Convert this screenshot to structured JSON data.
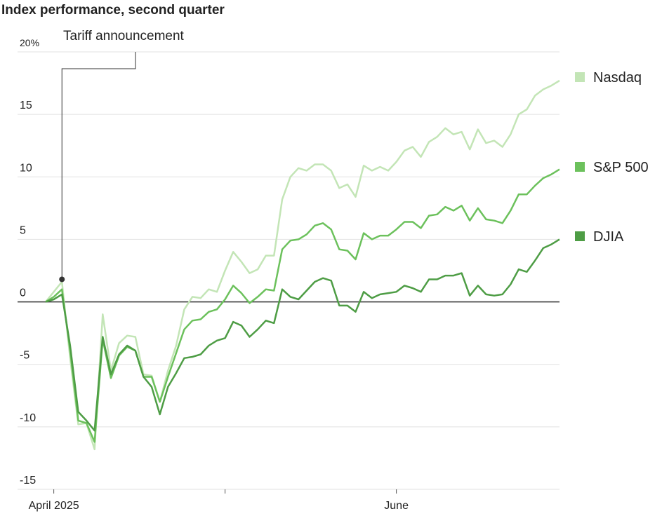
{
  "chart_data": {
    "type": "line",
    "title": "Index performance, second quarter",
    "x": [
      0,
      1,
      2,
      3,
      4,
      5,
      6,
      7,
      8,
      9,
      10,
      11,
      12,
      13,
      14,
      15,
      16,
      17,
      18,
      19,
      20,
      21,
      22,
      23,
      24,
      25,
      26,
      27,
      28,
      29,
      30,
      31,
      32,
      33,
      34,
      35,
      36,
      37,
      38,
      39,
      40,
      41,
      42,
      43,
      44,
      45,
      46,
      47,
      48,
      49,
      50,
      51,
      52,
      53,
      54,
      55,
      56,
      57,
      58,
      59,
      60,
      61,
      62,
      63
    ],
    "series": [
      {
        "name": "Nasdaq",
        "color": "#c3e5b6",
        "values": [
          0,
          0.8,
          1.6,
          -4.5,
          -9.8,
          -9.7,
          -11.8,
          -1.0,
          -5.5,
          -3.3,
          -2.7,
          -2.8,
          -5.8,
          -5.9,
          -8.0,
          -5.5,
          -3.5,
          -0.6,
          0.4,
          0.3,
          1.0,
          0.8,
          2.5,
          4.0,
          3.2,
          2.3,
          2.6,
          3.7,
          3.7,
          8.2,
          10.0,
          10.7,
          10.5,
          11.0,
          11.0,
          10.5,
          9.1,
          9.4,
          8.4,
          10.9,
          10.5,
          10.8,
          10.5,
          11.2,
          12.1,
          12.4,
          11.6,
          12.8,
          13.2,
          13.9,
          13.4,
          13.6,
          12.2,
          13.8,
          12.7,
          12.9,
          12.4,
          13.4,
          15.0,
          15.4,
          16.5,
          17.0,
          17.3,
          17.7
        ]
      },
      {
        "name": "S&P 500",
        "color": "#6cc15c",
        "values": [
          0,
          0.4,
          1.0,
          -3.9,
          -9.5,
          -9.7,
          -11.2,
          -3.0,
          -6.1,
          -4.3,
          -3.6,
          -3.9,
          -6.0,
          -6.0,
          -8.0,
          -6.0,
          -4.1,
          -2.2,
          -1.5,
          -1.4,
          -0.8,
          -0.6,
          0.2,
          1.3,
          0.7,
          -0.1,
          0.4,
          1.0,
          0.9,
          4.2,
          4.9,
          5.0,
          5.4,
          6.1,
          6.3,
          5.8,
          4.2,
          4.1,
          3.4,
          5.5,
          5.0,
          5.3,
          5.3,
          5.8,
          6.4,
          6.4,
          5.9,
          6.9,
          7.0,
          7.6,
          7.3,
          7.7,
          6.5,
          7.5,
          6.6,
          6.5,
          6.3,
          7.3,
          8.6,
          8.6,
          9.3,
          9.9,
          10.2,
          10.6
        ]
      },
      {
        "name": "DJIA",
        "color": "#4e9d45",
        "values": [
          0,
          0.2,
          0.6,
          -3.5,
          -8.8,
          -9.5,
          -10.3,
          -2.8,
          -5.8,
          -4.2,
          -3.5,
          -3.9,
          -6.0,
          -6.8,
          -9.0,
          -6.8,
          -5.7,
          -4.5,
          -4.4,
          -4.2,
          -3.5,
          -3.1,
          -2.9,
          -1.6,
          -1.9,
          -2.8,
          -2.2,
          -1.5,
          -1.7,
          1.0,
          0.4,
          0.2,
          0.9,
          1.6,
          1.9,
          1.7,
          -0.3,
          -0.3,
          -0.8,
          0.8,
          0.3,
          0.6,
          0.7,
          0.8,
          1.3,
          1.1,
          0.8,
          1.8,
          1.8,
          2.1,
          2.1,
          2.3,
          0.5,
          1.3,
          0.6,
          0.5,
          0.6,
          1.4,
          2.6,
          2.4,
          3.3,
          4.3,
          4.6,
          5.0
        ]
      }
    ],
    "xlim": [
      0,
      63
    ],
    "xticks": [
      {
        "value": 1,
        "label": "April 2025"
      },
      {
        "value": 22,
        "label": null
      },
      {
        "value": 43,
        "label": "June"
      }
    ],
    "ylim": [
      -15,
      20
    ],
    "yticks": [
      {
        "value": 20,
        "label": "20%"
      },
      15,
      10,
      5,
      0,
      -5,
      -10,
      -15
    ],
    "grid": true,
    "annotation": {
      "text": "Tariff announcement",
      "x": 2,
      "y": 1.8
    }
  }
}
